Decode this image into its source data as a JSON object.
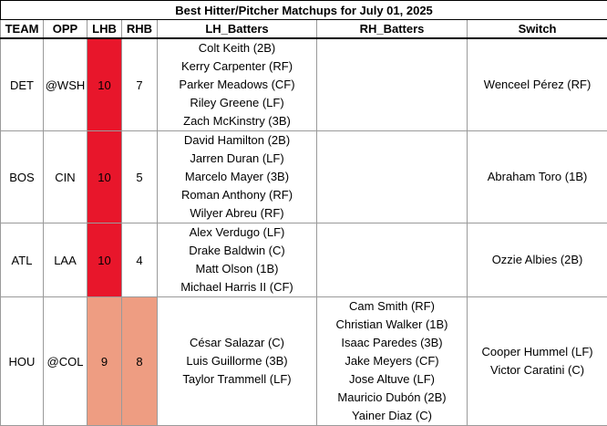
{
  "title": "Best Hitter/Pitcher Matchups for July 01, 2025",
  "headers": {
    "team": "TEAM",
    "opp": "OPP",
    "lhb": "LHB",
    "rhb": "RHB",
    "lh": "LH_Batters",
    "rh": "RH_Batters",
    "sw": "Switch"
  },
  "colors": {
    "score_high": "#e8162b",
    "score_mid": "#ee9d82"
  },
  "rows": [
    {
      "team": "DET",
      "opp": "@WSH",
      "lhb": "10",
      "rhb": "7",
      "lh": [
        "Colt Keith (2B)",
        "Kerry Carpenter (RF)",
        "Parker Meadows (CF)",
        "Riley Greene (LF)",
        "Zach McKinstry (3B)"
      ],
      "rh": [],
      "sw": [
        "Wenceel Pérez (RF)"
      ]
    },
    {
      "team": "BOS",
      "opp": "CIN",
      "lhb": "10",
      "rhb": "5",
      "lh": [
        "David Hamilton (2B)",
        "Jarren Duran (LF)",
        "Marcelo Mayer (3B)",
        "Roman Anthony (RF)",
        "Wilyer Abreu (RF)"
      ],
      "rh": [],
      "sw": [
        "Abraham Toro (1B)"
      ]
    },
    {
      "team": "ATL",
      "opp": "LAA",
      "lhb": "10",
      "rhb": "4",
      "lh": [
        "Alex Verdugo (LF)",
        "Drake Baldwin (C)",
        "Matt Olson (1B)",
        "Michael Harris II (CF)"
      ],
      "rh": [],
      "sw": [
        "Ozzie Albies (2B)"
      ]
    },
    {
      "team": "HOU",
      "opp": "@COL",
      "lhb": "9",
      "rhb": "8",
      "lh": [
        "César Salazar (C)",
        "Luis Guillorme (3B)",
        "Taylor Trammell (LF)"
      ],
      "rh": [
        "Cam Smith (RF)",
        "Christian Walker (1B)",
        "Isaac Paredes (3B)",
        "Jake Meyers (CF)",
        "Jose Altuve (LF)",
        "Mauricio Dubón (2B)",
        "Yainer Diaz (C)"
      ],
      "sw": [
        "Cooper Hummel (LF)",
        "Victor Caratini (C)"
      ]
    }
  ]
}
